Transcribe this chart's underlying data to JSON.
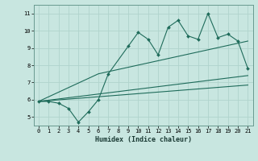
{
  "xlabel": "Humidex (Indice chaleur)",
  "bg_color": "#c8e6e0",
  "grid_color": "#b0d4cc",
  "line_color": "#1e6b5a",
  "spine_color": "#6a9a90",
  "xlim": [
    -0.5,
    21.5
  ],
  "ylim": [
    4.5,
    11.5
  ],
  "xticks": [
    0,
    1,
    2,
    3,
    4,
    5,
    6,
    7,
    8,
    9,
    10,
    11,
    12,
    13,
    14,
    15,
    16,
    17,
    18,
    19,
    20,
    21
  ],
  "yticks": [
    5,
    6,
    7,
    8,
    9,
    10,
    11
  ],
  "data_x": [
    0,
    1,
    2,
    3,
    4,
    5,
    6,
    7,
    9,
    10,
    11,
    12,
    13,
    14,
    15,
    16,
    17,
    18,
    19,
    20,
    21
  ],
  "data_y": [
    5.9,
    5.9,
    5.8,
    5.5,
    4.7,
    5.3,
    6.0,
    7.5,
    9.1,
    9.9,
    9.5,
    8.6,
    10.2,
    10.6,
    9.7,
    9.5,
    11.0,
    9.6,
    9.8,
    9.4,
    7.8
  ],
  "line1_x": [
    0,
    21
  ],
  "line1_y": [
    5.9,
    6.85
  ],
  "line2_x": [
    0,
    21
  ],
  "line2_y": [
    5.9,
    7.4
  ],
  "line3_x": [
    0,
    6,
    21
  ],
  "line3_y": [
    5.9,
    7.5,
    9.4
  ]
}
